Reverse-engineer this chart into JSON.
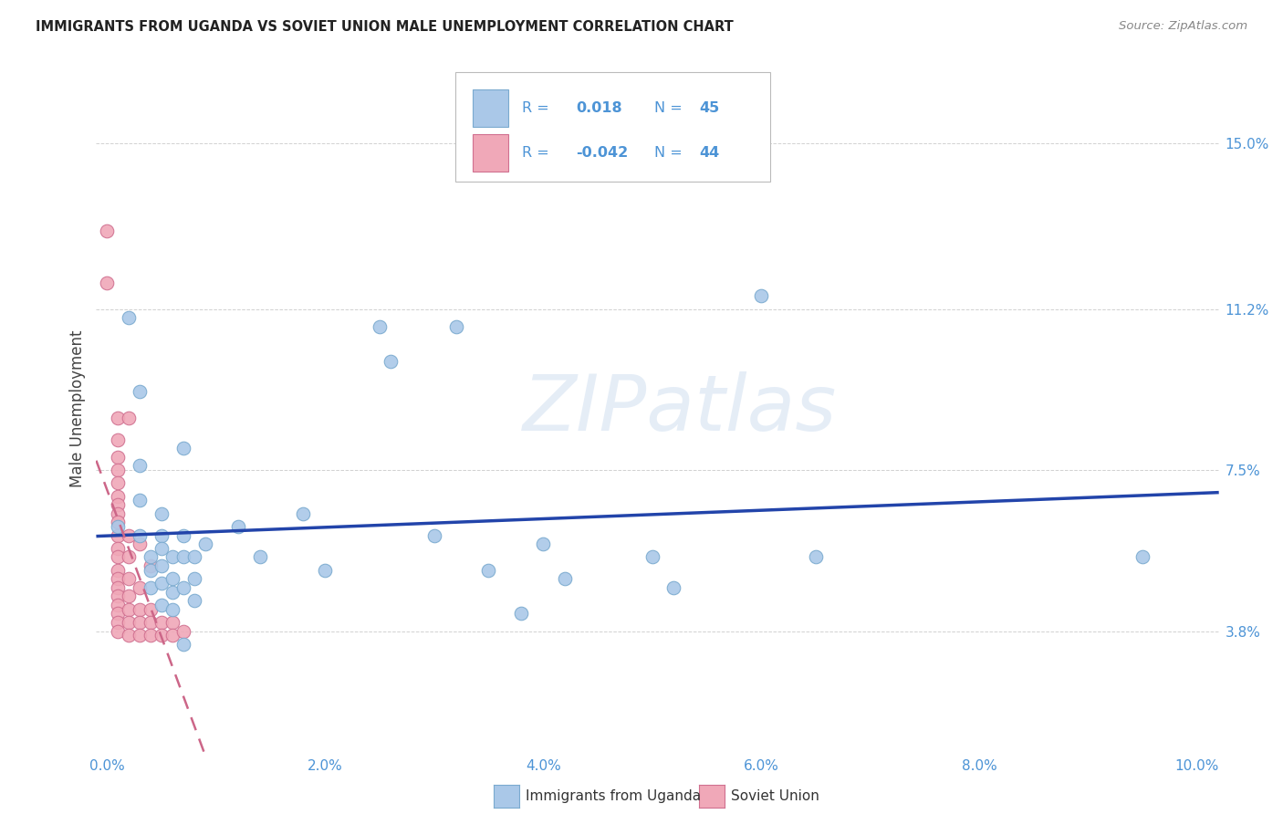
{
  "title": "IMMIGRANTS FROM UGANDA VS SOVIET UNION MALE UNEMPLOYMENT CORRELATION CHART",
  "source": "Source: ZipAtlas.com",
  "ylabel": "Male Unemployment",
  "xlim": [
    -0.001,
    0.102
  ],
  "ylim": [
    0.01,
    0.168
  ],
  "xtick_vals": [
    0.0,
    0.02,
    0.04,
    0.06,
    0.08,
    0.1
  ],
  "xtick_labels": [
    "0.0%",
    "2.0%",
    "4.0%",
    "6.0%",
    "8.0%",
    "10.0%"
  ],
  "ytick_vals": [
    0.038,
    0.075,
    0.112,
    0.15
  ],
  "ytick_labels": [
    "3.8%",
    "7.5%",
    "11.2%",
    "15.0%"
  ],
  "tick_color": "#4d94d6",
  "grid_color": "#cccccc",
  "watermark": "ZIPatlas",
  "watermark_color": "#d0dff0",
  "uganda_color": "#aac8e8",
  "uganda_edge": "#7aaacf",
  "uganda_line_color": "#2244aa",
  "soviet_color": "#f0a8b8",
  "soviet_edge": "#d07090",
  "soviet_line_color": "#cc6688",
  "uganda_R": 0.018,
  "uganda_N": 45,
  "soviet_R": -0.042,
  "soviet_N": 44,
  "legend_text_color": "#4d94d6",
  "uganda_points": [
    [
      0.001,
      0.062
    ],
    [
      0.002,
      0.11
    ],
    [
      0.003,
      0.093
    ],
    [
      0.003,
      0.076
    ],
    [
      0.003,
      0.068
    ],
    [
      0.003,
      0.06
    ],
    [
      0.004,
      0.055
    ],
    [
      0.004,
      0.052
    ],
    [
      0.004,
      0.048
    ],
    [
      0.005,
      0.065
    ],
    [
      0.005,
      0.06
    ],
    [
      0.005,
      0.057
    ],
    [
      0.005,
      0.053
    ],
    [
      0.005,
      0.049
    ],
    [
      0.005,
      0.044
    ],
    [
      0.006,
      0.055
    ],
    [
      0.006,
      0.05
    ],
    [
      0.006,
      0.047
    ],
    [
      0.006,
      0.043
    ],
    [
      0.007,
      0.08
    ],
    [
      0.007,
      0.06
    ],
    [
      0.007,
      0.055
    ],
    [
      0.007,
      0.048
    ],
    [
      0.007,
      0.035
    ],
    [
      0.008,
      0.055
    ],
    [
      0.008,
      0.05
    ],
    [
      0.008,
      0.045
    ],
    [
      0.009,
      0.058
    ],
    [
      0.012,
      0.062
    ],
    [
      0.014,
      0.055
    ],
    [
      0.018,
      0.065
    ],
    [
      0.02,
      0.052
    ],
    [
      0.025,
      0.108
    ],
    [
      0.026,
      0.1
    ],
    [
      0.03,
      0.06
    ],
    [
      0.032,
      0.108
    ],
    [
      0.035,
      0.052
    ],
    [
      0.038,
      0.042
    ],
    [
      0.04,
      0.058
    ],
    [
      0.042,
      0.05
    ],
    [
      0.05,
      0.055
    ],
    [
      0.052,
      0.048
    ],
    [
      0.06,
      0.115
    ],
    [
      0.065,
      0.055
    ],
    [
      0.095,
      0.055
    ]
  ],
  "soviet_points": [
    [
      0.0,
      0.13
    ],
    [
      0.0,
      0.118
    ],
    [
      0.001,
      0.087
    ],
    [
      0.001,
      0.082
    ],
    [
      0.001,
      0.078
    ],
    [
      0.001,
      0.075
    ],
    [
      0.001,
      0.072
    ],
    [
      0.001,
      0.069
    ],
    [
      0.001,
      0.067
    ],
    [
      0.001,
      0.065
    ],
    [
      0.001,
      0.063
    ],
    [
      0.001,
      0.06
    ],
    [
      0.001,
      0.057
    ],
    [
      0.001,
      0.055
    ],
    [
      0.001,
      0.052
    ],
    [
      0.001,
      0.05
    ],
    [
      0.001,
      0.048
    ],
    [
      0.001,
      0.046
    ],
    [
      0.001,
      0.044
    ],
    [
      0.001,
      0.042
    ],
    [
      0.001,
      0.04
    ],
    [
      0.001,
      0.038
    ],
    [
      0.002,
      0.087
    ],
    [
      0.002,
      0.06
    ],
    [
      0.002,
      0.055
    ],
    [
      0.002,
      0.05
    ],
    [
      0.002,
      0.046
    ],
    [
      0.002,
      0.043
    ],
    [
      0.002,
      0.04
    ],
    [
      0.002,
      0.037
    ],
    [
      0.003,
      0.058
    ],
    [
      0.003,
      0.048
    ],
    [
      0.003,
      0.043
    ],
    [
      0.003,
      0.04
    ],
    [
      0.003,
      0.037
    ],
    [
      0.004,
      0.053
    ],
    [
      0.004,
      0.043
    ],
    [
      0.004,
      0.04
    ],
    [
      0.004,
      0.037
    ],
    [
      0.005,
      0.04
    ],
    [
      0.005,
      0.037
    ],
    [
      0.006,
      0.04
    ],
    [
      0.006,
      0.037
    ],
    [
      0.007,
      0.038
    ]
  ]
}
